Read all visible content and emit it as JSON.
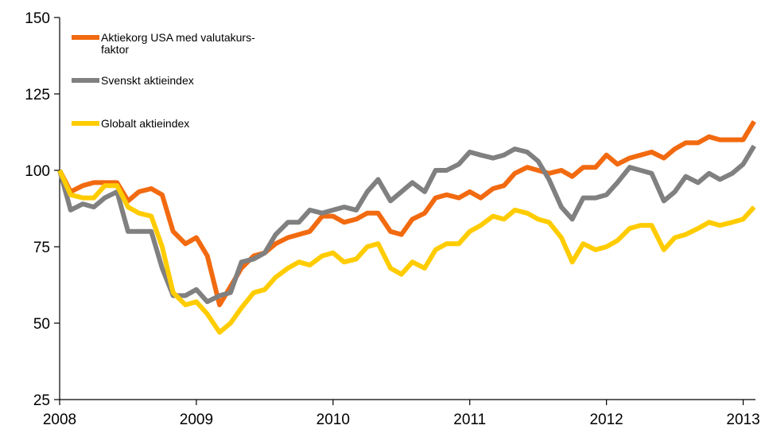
{
  "chart_data": {
    "type": "line",
    "x": [
      2008,
      2008.08,
      2008.17,
      2008.25,
      2008.33,
      2008.42,
      2008.5,
      2008.58,
      2008.67,
      2008.75,
      2008.83,
      2008.92,
      2009,
      2009.08,
      2009.17,
      2009.25,
      2009.33,
      2009.42,
      2009.5,
      2009.58,
      2009.67,
      2009.75,
      2009.83,
      2009.92,
      2010,
      2010.08,
      2010.17,
      2010.25,
      2010.33,
      2010.42,
      2010.5,
      2010.58,
      2010.67,
      2010.75,
      2010.83,
      2010.92,
      2011,
      2011.08,
      2011.17,
      2011.25,
      2011.33,
      2011.42,
      2011.5,
      2011.58,
      2011.67,
      2011.75,
      2011.83,
      2011.92,
      2012,
      2012.08,
      2012.17,
      2012.25,
      2012.33,
      2012.42,
      2012.5,
      2012.58,
      2012.67,
      2012.75,
      2012.83,
      2012.92,
      2013,
      2013.08
    ],
    "series": [
      {
        "name": "Aktiekorg USA med valutakurs-\nfaktor",
        "color": "#f26a10",
        "values": [
          100,
          93,
          95,
          96,
          96,
          96,
          90,
          93,
          94,
          92,
          80,
          76,
          78,
          72,
          56,
          62,
          68,
          72,
          73,
          76,
          78,
          79,
          80,
          85,
          85,
          83,
          84,
          86,
          86,
          80,
          79,
          84,
          86,
          91,
          92,
          91,
          93,
          91,
          94,
          95,
          99,
          101,
          100,
          99,
          100,
          98,
          101,
          101,
          105,
          102,
          104,
          105,
          106,
          104,
          107,
          109,
          109,
          111,
          110,
          110,
          110,
          116
        ]
      },
      {
        "name": "Svenskt aktieindex",
        "color": "#808080",
        "values": [
          100,
          87,
          89,
          88,
          91,
          93,
          80,
          80,
          80,
          68,
          59,
          59,
          61,
          57,
          59,
          60,
          70,
          71,
          73,
          79,
          83,
          83,
          87,
          86,
          87,
          88,
          87,
          93,
          97,
          90,
          93,
          96,
          93,
          100,
          100,
          102,
          106,
          105,
          104,
          105,
          107,
          106,
          103,
          97,
          88,
          84,
          91,
          91,
          92,
          96,
          101,
          100,
          99,
          90,
          93,
          98,
          96,
          99,
          97,
          99,
          102,
          108
        ]
      },
      {
        "name": "Globalt aktieindex",
        "color": "#ffcc00",
        "values": [
          100,
          92,
          91,
          91,
          95,
          95,
          88,
          86,
          85,
          75,
          60,
          56,
          57,
          53,
          47,
          50,
          55,
          60,
          61,
          65,
          68,
          70,
          69,
          72,
          73,
          70,
          71,
          75,
          76,
          68,
          66,
          70,
          68,
          74,
          76,
          76,
          80,
          82,
          85,
          84,
          87,
          86,
          84,
          83,
          78,
          70,
          76,
          74,
          75,
          77,
          81,
          82,
          82,
          74,
          78,
          79,
          81,
          83,
          82,
          83,
          84,
          88
        ]
      }
    ],
    "xlim": [
      2008,
      2013.09
    ],
    "xticks": [
      2008,
      2009,
      2010,
      2011,
      2012,
      2013
    ],
    "ylim": [
      25,
      150
    ],
    "yticks": [
      25,
      50,
      75,
      100,
      125,
      150
    ],
    "grid": false,
    "legend": "upper left"
  }
}
